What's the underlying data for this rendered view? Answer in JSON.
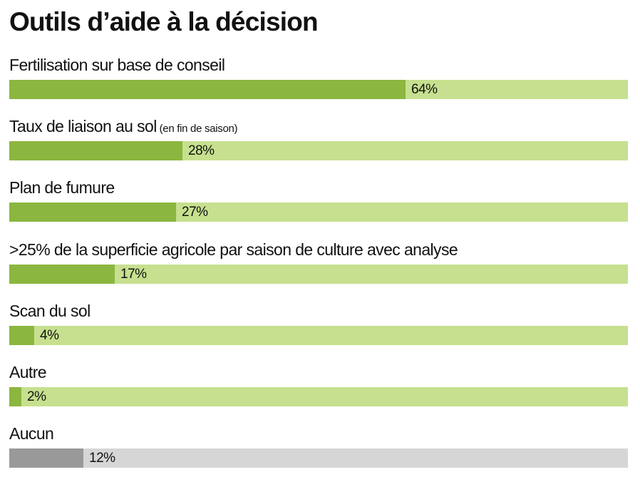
{
  "title": "Outils d’aide à la décision",
  "colors": {
    "fill": "#8bb63f",
    "track": "#c6e08f",
    "fill_none": "#999999",
    "track_none": "#d6d6d6"
  },
  "chart_data": {
    "type": "bar",
    "orientation": "horizontal",
    "title": "Outils d’aide à la décision",
    "unit": "%",
    "xlim": [
      0,
      100
    ],
    "grid": false,
    "legend": "none",
    "categories": [
      "Fertilisation sur base de conseil",
      "Taux de liaison au sol (en fin de saison)",
      "Plan de fumure",
      ">25% de la superficie agricole par saison de culture avec analyse",
      "Scan du sol",
      "Autre",
      "Aucun"
    ],
    "values": [
      64,
      28,
      27,
      17,
      4,
      2,
      12
    ],
    "bars": [
      {
        "label": "Fertilisation sur base de conseil",
        "value": 64,
        "value_label": "64%",
        "style": "green"
      },
      {
        "label": "Taux de liaison au sol",
        "note": "(en fin de saison)",
        "value": 28,
        "value_label": "28%",
        "style": "green"
      },
      {
        "label": "Plan de fumure",
        "value": 27,
        "value_label": "27%",
        "style": "green"
      },
      {
        "label": ">25% de la superficie agricole par saison de culture avec analyse",
        "value": 17,
        "value_label": "17%",
        "style": "green"
      },
      {
        "label": "Scan du sol",
        "value": 4,
        "value_label": "4%",
        "style": "green"
      },
      {
        "label": "Autre",
        "value": 2,
        "value_label": "2%",
        "style": "green"
      },
      {
        "label": "Aucun",
        "value": 12,
        "value_label": "12%",
        "style": "grey"
      }
    ]
  }
}
